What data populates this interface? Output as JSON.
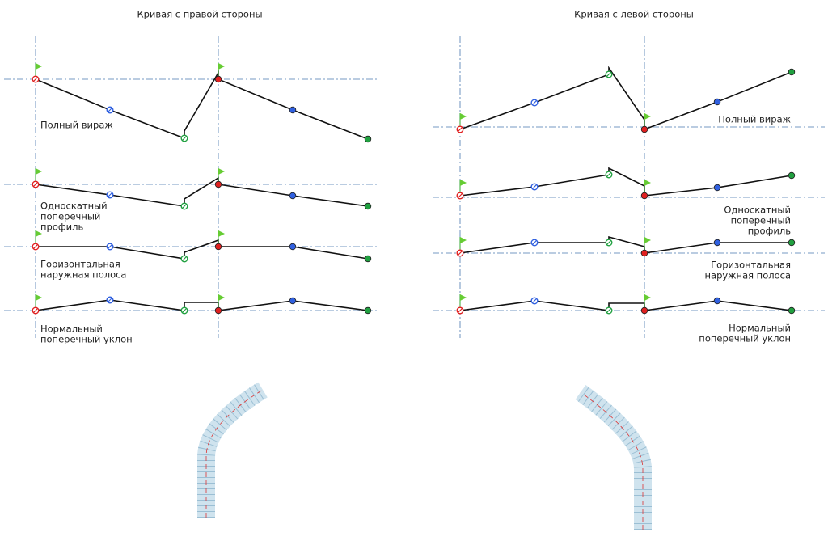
{
  "panels": [
    {
      "title": "Кривая с правой стороны",
      "labels": [
        [
          "Полный вираж"
        ],
        [
          "Односкатный",
          "поперечный",
          "профиль"
        ],
        [
          "Горизонтальная",
          "наружная полоса"
        ],
        [
          "Нормальный",
          "поперечный уклон"
        ]
      ]
    },
    {
      "title": "Кривая с левой стороны",
      "labels": [
        [
          "Полный вираж"
        ],
        [
          "Односкатный",
          "поперечный",
          "профиль"
        ],
        [
          "Горизонтальная",
          "наружная полоса"
        ],
        [
          "Нормальный",
          "поперечный уклон"
        ]
      ]
    }
  ]
}
